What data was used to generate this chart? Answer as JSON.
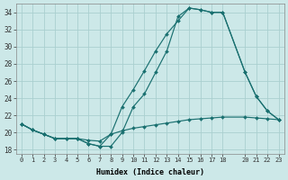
{
  "xlabel": "Humidex (Indice chaleur)",
  "bg_color": "#cce8e8",
  "line_color": "#1a7070",
  "grid_color": "#aacfcf",
  "xlim": [
    -0.5,
    23.5
  ],
  "ylim": [
    17.5,
    35.0
  ],
  "xticks": [
    0,
    1,
    2,
    3,
    4,
    5,
    6,
    7,
    8,
    9,
    10,
    11,
    12,
    13,
    14,
    15,
    16,
    17,
    18,
    20,
    21,
    22,
    23
  ],
  "yticks": [
    18,
    20,
    22,
    24,
    26,
    28,
    30,
    32,
    34
  ],
  "line1_x": [
    0,
    1,
    2,
    3,
    4,
    5,
    6,
    7,
    8,
    9,
    10,
    11,
    12,
    13,
    14,
    15,
    16,
    17,
    18,
    20,
    21,
    22,
    23
  ],
  "line1_y": [
    21.0,
    20.3,
    19.8,
    19.3,
    19.3,
    19.3,
    19.1,
    19.0,
    19.8,
    20.2,
    20.5,
    20.7,
    20.9,
    21.1,
    21.3,
    21.5,
    21.6,
    21.7,
    21.8,
    21.8,
    21.7,
    21.6,
    21.5
  ],
  "line2_x": [
    0,
    1,
    2,
    3,
    4,
    5,
    6,
    7,
    8,
    9,
    10,
    11,
    12,
    13,
    14,
    15,
    16,
    17,
    18,
    20,
    21,
    22,
    23
  ],
  "line2_y": [
    21.0,
    20.3,
    19.8,
    19.3,
    19.3,
    19.3,
    18.7,
    18.4,
    19.8,
    23.0,
    25.0,
    27.2,
    29.5,
    31.5,
    33.0,
    34.5,
    34.3,
    34.0,
    34.0,
    27.0,
    24.2,
    22.5,
    21.5
  ],
  "line3_x": [
    0,
    1,
    2,
    3,
    5,
    6,
    7,
    8,
    9,
    10,
    11,
    12,
    13,
    14,
    15,
    16,
    17,
    18,
    20,
    21,
    22,
    23
  ],
  "line3_y": [
    21.0,
    20.3,
    19.8,
    19.3,
    19.3,
    18.7,
    18.4,
    18.4,
    20.0,
    23.0,
    24.5,
    27.0,
    29.5,
    33.5,
    34.5,
    34.3,
    34.0,
    34.0,
    27.0,
    24.2,
    22.5,
    21.5
  ]
}
